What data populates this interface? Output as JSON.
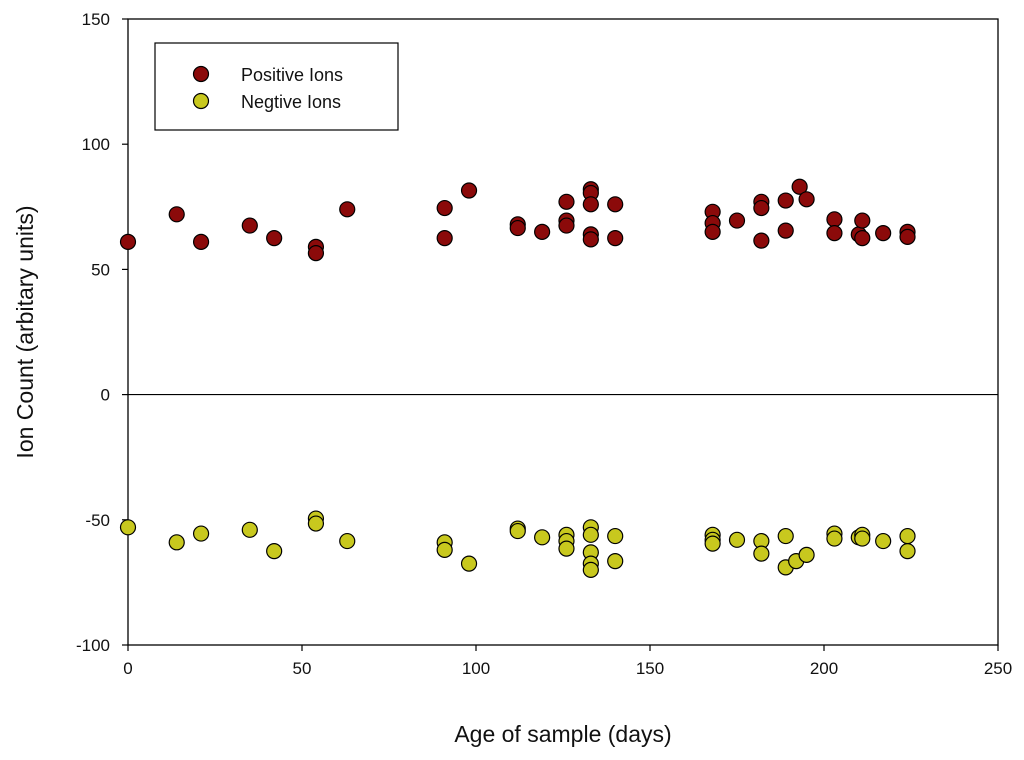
{
  "chart_data": {
    "type": "scatter",
    "title": "",
    "xlabel": "Age of sample (days)",
    "ylabel": "Ion Count (arbitary units)",
    "xlim": [
      0,
      250
    ],
    "ylim": [
      -100,
      150
    ],
    "xticks": [
      0,
      50,
      100,
      150,
      200,
      250
    ],
    "yticks": [
      -100,
      -50,
      0,
      50,
      100,
      150
    ],
    "zero_line": true,
    "grid": false,
    "legend_position": "top-left",
    "series": [
      {
        "name": "Positive Ions",
        "color": "#8B0A0A",
        "points": [
          [
            0,
            61
          ],
          [
            14,
            72
          ],
          [
            21,
            61
          ],
          [
            35,
            67.5
          ],
          [
            42,
            62.5
          ],
          [
            54,
            59
          ],
          [
            54,
            56.5
          ],
          [
            63,
            74
          ],
          [
            91,
            74.5
          ],
          [
            91,
            62.5
          ],
          [
            98,
            81.5
          ],
          [
            112,
            68
          ],
          [
            112,
            66.5
          ],
          [
            119,
            65
          ],
          [
            126,
            77
          ],
          [
            126,
            69.5
          ],
          [
            126,
            67.5
          ],
          [
            133,
            82
          ],
          [
            133,
            80.5
          ],
          [
            133,
            76
          ],
          [
            133,
            64
          ],
          [
            133,
            62
          ],
          [
            140,
            76
          ],
          [
            140,
            62.5
          ],
          [
            168,
            73
          ],
          [
            168,
            68.5
          ],
          [
            168,
            65
          ],
          [
            175,
            69.5
          ],
          [
            182,
            77
          ],
          [
            182,
            74.5
          ],
          [
            182,
            61.5
          ],
          [
            189,
            77.5
          ],
          [
            189,
            65.5
          ],
          [
            193,
            83
          ],
          [
            195,
            78
          ],
          [
            203,
            70
          ],
          [
            203,
            64.5
          ],
          [
            210,
            64
          ],
          [
            211,
            69.5
          ],
          [
            211,
            62.5
          ],
          [
            217,
            64.5
          ],
          [
            224,
            65
          ],
          [
            224,
            63
          ]
        ]
      },
      {
        "name": "Negtive Ions",
        "color": "#C8C81E",
        "points": [
          [
            0,
            -53
          ],
          [
            14,
            -59
          ],
          [
            21,
            -55.5
          ],
          [
            35,
            -54
          ],
          [
            42,
            -62.5
          ],
          [
            54,
            -49.5
          ],
          [
            54,
            -51.5
          ],
          [
            63,
            -58.5
          ],
          [
            91,
            -59
          ],
          [
            91,
            -62
          ],
          [
            98,
            -67.5
          ],
          [
            112,
            -53.5
          ],
          [
            112,
            -54.5
          ],
          [
            119,
            -57
          ],
          [
            126,
            -56
          ],
          [
            126,
            -58.5
          ],
          [
            126,
            -61.5
          ],
          [
            133,
            -53
          ],
          [
            133,
            -56
          ],
          [
            133,
            -63
          ],
          [
            133,
            -67.5
          ],
          [
            133,
            -70
          ],
          [
            140,
            -56.5
          ],
          [
            140,
            -66.5
          ],
          [
            168,
            -56
          ],
          [
            168,
            -58
          ],
          [
            168,
            -59.5
          ],
          [
            175,
            -58
          ],
          [
            182,
            -58.5
          ],
          [
            182,
            -63.5
          ],
          [
            189,
            -56.5
          ],
          [
            189,
            -69
          ],
          [
            192,
            -66.5
          ],
          [
            195,
            -64
          ],
          [
            203,
            -55.5
          ],
          [
            203,
            -57.5
          ],
          [
            210,
            -57
          ],
          [
            211,
            -56
          ],
          [
            211,
            -57.5
          ],
          [
            217,
            -58.5
          ],
          [
            224,
            -56.5
          ],
          [
            224,
            -62.5
          ]
        ]
      }
    ]
  }
}
